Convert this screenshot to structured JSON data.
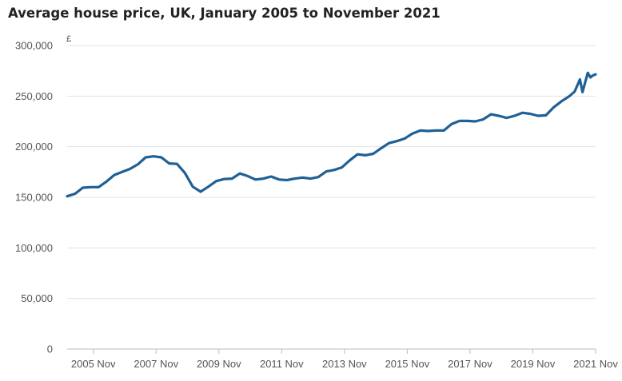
{
  "chart_data": {
    "type": "line",
    "title": "Average house price, UK, January 2005 to November 2021",
    "ylabel": "£",
    "xlabel": "",
    "ylim": [
      0,
      300000
    ],
    "yticks": [
      0,
      50000,
      100000,
      150000,
      200000,
      250000,
      300000
    ],
    "ytick_labels": [
      "0",
      "50,000",
      "100,000",
      "150,000",
      "200,000",
      "250,000",
      "300,000"
    ],
    "xticks": [
      "2005-11",
      "2007-11",
      "2009-11",
      "2011-11",
      "2013-11",
      "2015-11",
      "2017-11",
      "2019-11",
      "2021-11"
    ],
    "xtick_labels": [
      "2005 Nov",
      "2007 Nov",
      "2009 Nov",
      "2011 Nov",
      "2013 Nov",
      "2015 Nov",
      "2017 Nov",
      "2019 Nov",
      "2021 Nov"
    ],
    "grid": true,
    "line_color": "#206095",
    "series": [
      {
        "name": "",
        "x": [
          "2005-01",
          "2005-04",
          "2005-07",
          "2005-10",
          "2006-01",
          "2006-04",
          "2006-07",
          "2006-10",
          "2007-01",
          "2007-04",
          "2007-07",
          "2007-10",
          "2008-01",
          "2008-04",
          "2008-07",
          "2008-10",
          "2009-01",
          "2009-04",
          "2009-07",
          "2009-10",
          "2010-01",
          "2010-04",
          "2010-07",
          "2010-10",
          "2011-01",
          "2011-04",
          "2011-07",
          "2011-10",
          "2012-01",
          "2012-04",
          "2012-07",
          "2012-10",
          "2013-01",
          "2013-04",
          "2013-07",
          "2013-10",
          "2014-01",
          "2014-04",
          "2014-07",
          "2014-10",
          "2015-01",
          "2015-04",
          "2015-07",
          "2015-10",
          "2016-01",
          "2016-04",
          "2016-07",
          "2016-10",
          "2017-01",
          "2017-04",
          "2017-07",
          "2017-10",
          "2018-01",
          "2018-04",
          "2018-07",
          "2018-10",
          "2019-01",
          "2019-04",
          "2019-07",
          "2019-10",
          "2020-01",
          "2020-04",
          "2020-07",
          "2020-10",
          "2021-01",
          "2021-03",
          "2021-05",
          "2021-06",
          "2021-07",
          "2021-08",
          "2021-09",
          "2021-10",
          "2021-11"
        ],
        "values": [
          151000,
          153500,
          159500,
          160000,
          160000,
          165500,
          172000,
          175000,
          178000,
          182500,
          189500,
          190500,
          189500,
          183500,
          183000,
          174000,
          160500,
          155500,
          160500,
          166000,
          168000,
          168500,
          173500,
          171000,
          167500,
          168500,
          170500,
          167500,
          167000,
          168500,
          169500,
          168500,
          170000,
          175500,
          177000,
          179500,
          186500,
          192500,
          191500,
          193000,
          198500,
          203500,
          205500,
          208000,
          213000,
          216000,
          215500,
          216000,
          216000,
          222500,
          225500,
          225500,
          225000,
          227000,
          232000,
          230500,
          228500,
          230500,
          233500,
          232500,
          230500,
          231000,
          239000,
          245000,
          250000,
          254500,
          266500,
          254000,
          263500,
          273000,
          268500,
          270500,
          271500
        ]
      }
    ]
  }
}
